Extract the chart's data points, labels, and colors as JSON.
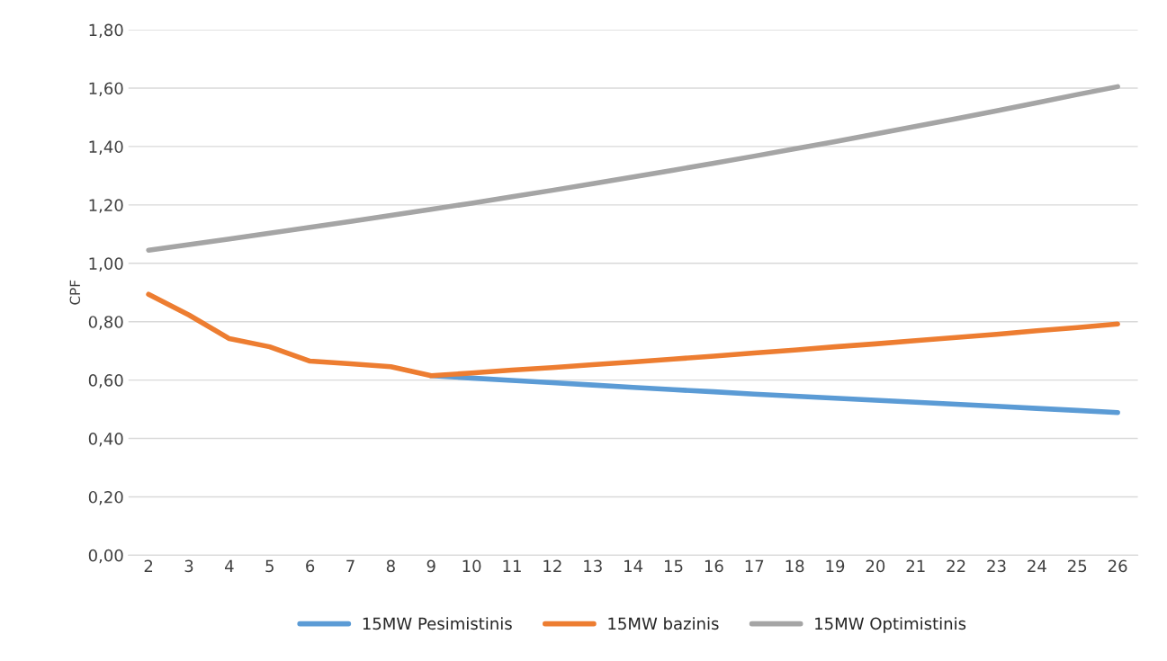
{
  "chart_data": {
    "type": "line",
    "ylabel": "CPF",
    "categories": [
      "2",
      "3",
      "4",
      "5",
      "6",
      "7",
      "8",
      "9",
      "10",
      "11",
      "12",
      "13",
      "14",
      "15",
      "16",
      "17",
      "18",
      "19",
      "20",
      "21",
      "22",
      "23",
      "24",
      "25",
      "26"
    ],
    "series": [
      {
        "name": "15MW Pesimistinis",
        "color": "#5b9bd5",
        "values": [
          null,
          null,
          null,
          null,
          null,
          null,
          null,
          0.615,
          0.607,
          0.599,
          0.591,
          0.583,
          0.575,
          0.567,
          0.56,
          0.552,
          0.545,
          0.538,
          0.531,
          0.524,
          0.517,
          0.51,
          0.503,
          0.496,
          0.489
        ]
      },
      {
        "name": "15MW bazinis",
        "color": "#ed7d31",
        "values": [
          0.894,
          0.823,
          0.742,
          0.714,
          0.665,
          0.656,
          0.646,
          0.615,
          0.624,
          0.634,
          0.643,
          0.653,
          0.662,
          0.672,
          0.682,
          0.693,
          0.703,
          0.714,
          0.724,
          0.735,
          0.746,
          0.757,
          0.769,
          0.78,
          0.792
        ]
      },
      {
        "name": "15MW Optimistinis",
        "color": "#a5a5a5",
        "values": [
          1.045,
          1.064,
          1.083,
          1.103,
          1.123,
          1.143,
          1.164,
          1.185,
          1.206,
          1.228,
          1.25,
          1.273,
          1.296,
          1.319,
          1.343,
          1.367,
          1.392,
          1.417,
          1.443,
          1.469,
          1.495,
          1.522,
          1.55,
          1.578,
          1.605
        ]
      }
    ],
    "ylim": [
      0,
      1.8
    ],
    "yticks": [
      {
        "value": 0,
        "label": "0,00"
      },
      {
        "value": 0.2,
        "label": "0,20"
      },
      {
        "value": 0.4,
        "label": "0,40"
      },
      {
        "value": 0.6,
        "label": "0,60"
      },
      {
        "value": 0.8,
        "label": "0,80"
      },
      {
        "value": 1.0,
        "label": "1,00"
      },
      {
        "value": 1.2,
        "label": "1,20"
      },
      {
        "value": 1.4,
        "label": "1,40"
      },
      {
        "value": 1.6,
        "label": "1,60"
      },
      {
        "value": 1.8,
        "label": "1,80"
      }
    ],
    "grid": "y",
    "legend": "bottom",
    "marker": "none",
    "line_style": "solid"
  }
}
